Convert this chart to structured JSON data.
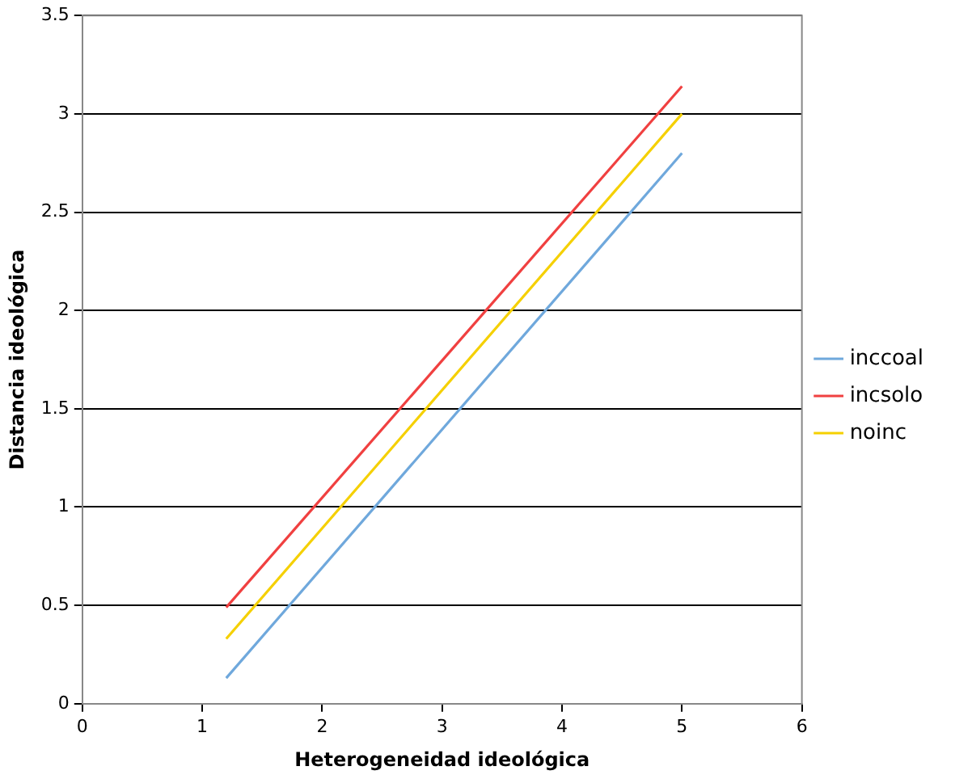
{
  "chart_data": {
    "type": "line",
    "xlabel": "Heterogeneidad ideológica",
    "ylabel": "Distancia ideológica",
    "xlim": [
      0,
      6
    ],
    "xticks": [
      0,
      1,
      2,
      3,
      4,
      5,
      6
    ],
    "ylim": [
      0,
      3.5
    ],
    "yticks": [
      0,
      0.5,
      1,
      1.5,
      2,
      2.5,
      3,
      3.5
    ],
    "grid": "y",
    "legend": "right",
    "marker": "none",
    "line_style": "solid",
    "x": [
      1.2,
      5
    ],
    "series": [
      {
        "name": "inccoal",
        "color": "#6fa8dc",
        "values": [
          0.13,
          2.8
        ]
      },
      {
        "name": "incsolo",
        "color": "#f04040",
        "values": [
          0.49,
          3.14
        ]
      },
      {
        "name": "noinc",
        "color": "#f5d000",
        "values": [
          0.33,
          3.0
        ]
      }
    ]
  }
}
